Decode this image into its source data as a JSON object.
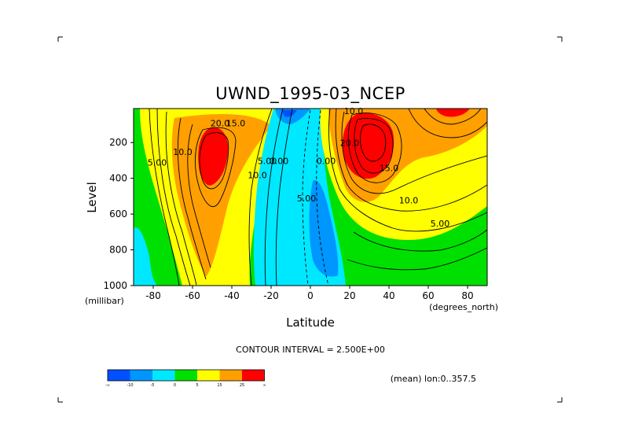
{
  "chart_data": {
    "type": "heatmap",
    "title": "UWND_1995-03_NCEP",
    "xlabel": "Latitude",
    "ylabel": "Level",
    "x_units": "(degrees_north)",
    "y_units": "(millibar)",
    "xlim": [
      -90,
      90
    ],
    "ylim": [
      1000,
      10
    ],
    "x_ticks": [
      -80,
      -60,
      -40,
      -20,
      0,
      20,
      40,
      60,
      80
    ],
    "y_ticks": [
      200,
      400,
      600,
      800,
      1000
    ],
    "contour_interval_text": "CONTOUR INTERVAL = 2.500E+00",
    "mean_text": "(mean) lon:0..357.5",
    "colorbar": {
      "colors": [
        "#0050ff",
        "#0096ff",
        "#00e8ff",
        "#00e000",
        "#ffff00",
        "#ffa000",
        "#ff0000"
      ],
      "labels": [
        "-∞",
        "-10",
        "-5",
        "0",
        "5",
        "15",
        "25",
        "∞"
      ]
    },
    "contour_labels": [
      {
        "text": "5.00",
        "lat": -78,
        "p": 330
      },
      {
        "text": "10.0",
        "lat": -65,
        "p": 270
      },
      {
        "text": "20.0",
        "lat": -46,
        "p": 110
      },
      {
        "text": "15.0",
        "lat": -38,
        "p": 110
      },
      {
        "text": "10.0",
        "lat": -27,
        "p": 400
      },
      {
        "text": "5.00",
        "lat": -22,
        "p": 320
      },
      {
        "text": "0.00",
        "lat": -16,
        "p": 320
      },
      {
        "text": "0.00",
        "lat": 8,
        "p": 320
      },
      {
        "text": "5.00",
        "lat": -2,
        "p": 530
      },
      {
        "text": "10.0",
        "lat": 22,
        "p": 40
      },
      {
        "text": "20.0",
        "lat": 20,
        "p": 220
      },
      {
        "text": "15.0",
        "lat": 40,
        "p": 360
      },
      {
        "text": "10.0",
        "lat": 50,
        "p": 540
      },
      {
        "text": "5.00",
        "lat": 66,
        "p": 670
      }
    ]
  }
}
